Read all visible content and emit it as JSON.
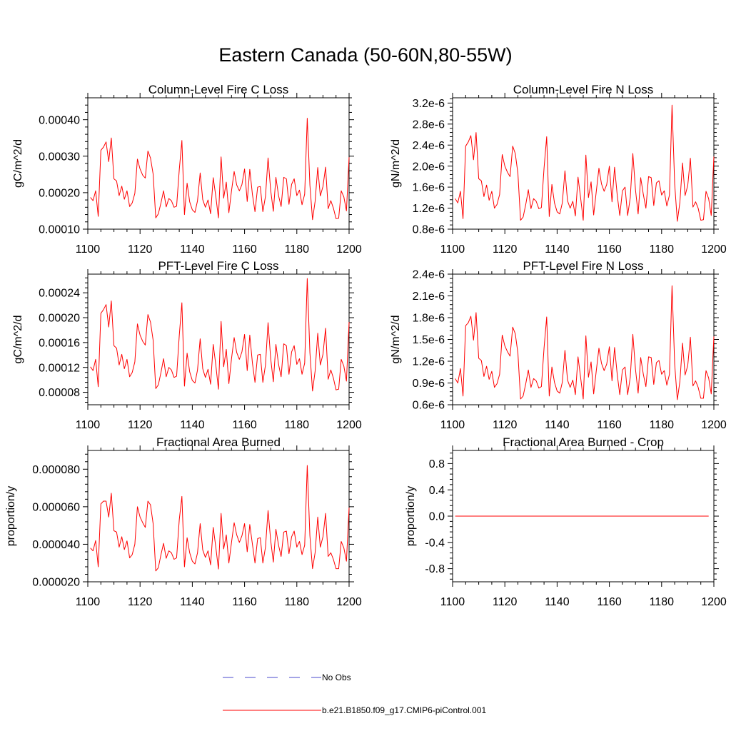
{
  "title": "Eastern Canada (50-60N,80-55W)",
  "colors": {
    "model": "#ff0000",
    "obs": "#4a4acd",
    "axis": "#000000"
  },
  "legend": {
    "entries": [
      {
        "label": "No Obs",
        "style": "dashed",
        "color": "#4a4acd"
      },
      {
        "label": "b.e21.B1850.f09_g17.CMIP6-piControl.001",
        "style": "solid",
        "color": "#ff0000"
      }
    ]
  },
  "chart_data": [
    {
      "type": "line",
      "title": "Column-Level Fire C Loss",
      "xlabel": "",
      "ylabel": "gC/m^2/d",
      "xlim": [
        1100,
        1200
      ],
      "ylim": [
        0.0001,
        0.00046
      ],
      "xticks": [
        1100,
        1120,
        1140,
        1160,
        1180,
        1200
      ],
      "xtick_labels": [
        "1100",
        "1120",
        "1140",
        "1160",
        "1180",
        "1200"
      ],
      "yticks": [
        0.0001,
        0.0002,
        0.0003,
        0.0004
      ],
      "ytick_labels": [
        "0.00010",
        "0.00020",
        "0.00030",
        "0.00040"
      ],
      "series": [
        {
          "name": "b.e21.B1850.f09_g17.CMIP6-piControl.001",
          "x_start": 1101,
          "values": [
            0.000187,
            0.000178,
            0.000205,
            0.000135,
            0.000316,
            0.000325,
            0.000339,
            0.000285,
            0.00035,
            0.000238,
            0.000232,
            0.000192,
            0.000218,
            0.000182,
            0.000205,
            0.000162,
            0.000172,
            0.000198,
            0.000292,
            0.000265,
            0.000248,
            0.00024,
            0.000314,
            0.000295,
            0.000251,
            0.000131,
            0.000142,
            0.000172,
            0.000205,
            0.000161,
            0.000184,
            0.000178,
            0.00016,
            0.000163,
            0.000262,
            0.000343,
            0.00014,
            0.000226,
            0.000175,
            0.000153,
            0.000146,
            0.000178,
            0.000254,
            0.000181,
            0.00016,
            0.00018,
            0.000142,
            0.000241,
            0.00019,
            0.000131,
            0.000298,
            0.000185,
            0.000229,
            0.000145,
            0.000205,
            0.000258,
            0.000221,
            0.000205,
            0.000222,
            0.000265,
            0.000176,
            0.000264,
            0.000195,
            0.000148,
            0.000215,
            0.000217,
            0.000148,
            0.00019,
            0.000295,
            0.000206,
            0.000149,
            0.000242,
            0.000192,
            0.000162,
            0.000242,
            0.000238,
            0.000168,
            0.000223,
            0.000238,
            0.000192,
            0.000207,
            0.000167,
            0.000196,
            0.000404,
            0.000221,
            0.000126,
            0.000176,
            0.000269,
            0.000191,
            0.000217,
            0.00027,
            0.000156,
            0.000178,
            0.000158,
            0.000129,
            0.00013,
            0.000205,
            0.000188,
            0.00015,
            0.000297
          ]
        }
      ]
    },
    {
      "type": "line",
      "title": "Column-Level Fire N Loss",
      "xlabel": "",
      "ylabel": "gN/m^2/d",
      "xlim": [
        1100,
        1200
      ],
      "ylim": [
        8e-07,
        3.3e-06
      ],
      "xticks": [
        1100,
        1120,
        1140,
        1160,
        1180,
        1200
      ],
      "xtick_labels": [
        "1100",
        "1120",
        "1140",
        "1160",
        "1180",
        "1200"
      ],
      "yticks": [
        8e-07,
        1.2e-06,
        1.6e-06,
        2e-06,
        2.4e-06,
        2.8e-06,
        3.2e-06
      ],
      "ytick_labels": [
        "0.8e-6",
        "1.2e-6",
        "1.6e-6",
        "2.0e-6",
        "2.4e-6",
        "2.8e-6",
        "3.2e-6"
      ],
      "series": [
        {
          "name": "b.e21.B1850.f09_g17.CMIP6-piControl.001",
          "x_start": 1101,
          "values": [
            1.38e-06,
            1.3e-06,
            1.52e-06,
            1e-06,
            2.38e-06,
            2.46e-06,
            2.58e-06,
            2.12e-06,
            2.64e-06,
            1.76e-06,
            1.72e-06,
            1.42e-06,
            1.64e-06,
            1.35e-06,
            1.52e-06,
            1.2e-06,
            1.27e-06,
            1.46e-06,
            2.22e-06,
            2e-06,
            1.88e-06,
            1.8e-06,
            2.38e-06,
            2.24e-06,
            1.86e-06,
            9.7e-07,
            1.03e-06,
            1.27e-06,
            1.55e-06,
            1.19e-06,
            1.38e-06,
            1.33e-06,
            1.19e-06,
            1.21e-06,
            1.96e-06,
            2.56e-06,
            1.04e-06,
            1.65e-06,
            1.3e-06,
            1.13e-06,
            1.09e-06,
            1.3e-06,
            1.91e-06,
            1.34e-06,
            1.2e-06,
            1.33e-06,
            1.05e-06,
            1.79e-06,
            1.4e-06,
            9.7e-07,
            2.21e-06,
            1.4e-06,
            1.7e-06,
            1.07e-06,
            1.52e-06,
            1.96e-06,
            1.66e-06,
            1.52e-06,
            1.65e-06,
            2e-06,
            1.32e-06,
            1.98e-06,
            1.45e-06,
            1.06e-06,
            1.53e-06,
            1.6e-06,
            1.06e-06,
            1.4e-06,
            2.24e-06,
            1.55e-06,
            1.09e-06,
            1.78e-06,
            1.46e-06,
            1.2e-06,
            1.8e-06,
            1.78e-06,
            1.25e-06,
            1.68e-06,
            1.72e-06,
            1.45e-06,
            1.53e-06,
            1.24e-06,
            1.45e-06,
            3.16e-06,
            1.66e-06,
            9.5e-07,
            1.31e-06,
            2.06e-06,
            1.44e-06,
            1.63e-06,
            2.15e-06,
            1.22e-06,
            1.32e-06,
            1.2e-06,
            9.7e-07,
            9.8e-07,
            1.52e-06,
            1.38e-06,
            1.06e-06,
            2.18e-06
          ]
        }
      ]
    },
    {
      "type": "line",
      "title": "PFT-Level Fire C Loss",
      "xlabel": "",
      "ylabel": "gC/m^2/d",
      "xlim": [
        1100,
        1200
      ],
      "ylim": [
        6e-05,
        0.00027
      ],
      "xticks": [
        1100,
        1120,
        1140,
        1160,
        1180,
        1200
      ],
      "xtick_labels": [
        "1100",
        "1120",
        "1140",
        "1160",
        "1180",
        "1200"
      ],
      "yticks": [
        8e-05,
        0.00012,
        0.00016,
        0.0002,
        0.00024
      ],
      "ytick_labels": [
        "0.00008",
        "0.00012",
        "0.00016",
        "0.00020",
        "0.00024"
      ],
      "series": [
        {
          "name": "b.e21.B1850.f09_g17.CMIP6-piControl.001",
          "x_start": 1101,
          "values": [
            0.000121,
            0.000115,
            0.000133,
            8.9e-05,
            0.000207,
            0.000213,
            0.000221,
            0.000185,
            0.000227,
            0.000155,
            0.000151,
            0.000124,
            0.000141,
            0.000118,
            0.000133,
            0.000105,
            0.000112,
            0.000129,
            0.00019,
            0.000172,
            0.000162,
            0.000156,
            0.000205,
            0.000193,
            0.000164,
            8.6e-05,
            9.2e-05,
            0.000112,
            0.000134,
            0.000105,
            0.00012,
            0.000116,
            0.000104,
            0.000106,
            0.000171,
            0.000224,
            9e-05,
            0.000143,
            0.000113,
            9.9e-05,
            9.5e-05,
            0.000116,
            0.000166,
            0.000118,
            0.000104,
            0.000117,
            9.3e-05,
            0.000157,
            0.000124,
            8.5e-05,
            0.000194,
            0.000121,
            0.000149,
            9.4e-05,
            0.000134,
            0.000168,
            0.000144,
            0.000133,
            0.000145,
            0.000173,
            0.000115,
            0.000172,
            0.000127,
            9.6e-05,
            0.00014,
            0.000141,
            9.6e-05,
            0.000124,
            0.000192,
            0.000134,
            9.7e-05,
            0.000157,
            0.000125,
            0.000105,
            0.000158,
            0.000155,
            0.000109,
            0.000145,
            0.000155,
            0.000125,
            0.000134,
            0.000109,
            0.000127,
            0.000263,
            0.000144,
            8.2e-05,
            0.000114,
            0.000175,
            0.000124,
            0.000141,
            0.000183,
            0.000101,
            0.000116,
            0.000103,
            8.4e-05,
            8.5e-05,
            0.000133,
            0.000122,
            9.8e-05,
            0.000193
          ]
        }
      ]
    },
    {
      "type": "line",
      "title": "PFT-Level Fire N Loss",
      "xlabel": "",
      "ylabel": "gN/m^2/d",
      "xlim": [
        1100,
        1200
      ],
      "ylim": [
        6e-07,
        2.4e-06
      ],
      "xticks": [
        1100,
        1120,
        1140,
        1160,
        1180,
        1200
      ],
      "xtick_labels": [
        "1100",
        "1120",
        "1140",
        "1160",
        "1180",
        "1200"
      ],
      "yticks": [
        6e-07,
        9e-07,
        1.2e-06,
        1.5e-06,
        1.8e-06,
        2.1e-06,
        2.4e-06
      ],
      "ytick_labels": [
        "0.6e-6",
        "0.9e-6",
        "1.2e-6",
        "1.5e-6",
        "1.8e-6",
        "2.1e-6",
        "2.4e-6"
      ],
      "series": [
        {
          "name": "b.e21.B1850.f09_g17.CMIP6-piControl.001",
          "x_start": 1101,
          "values": [
            9.6e-07,
            9e-07,
            1.1e-06,
            7.2e-07,
            1.69e-06,
            1.73e-06,
            1.82e-06,
            1.49e-06,
            1.87e-06,
            1.24e-06,
            1.21e-06,
            9.9e-07,
            1.13e-06,
            9.5e-07,
            1.06e-06,
            8.4e-07,
            8.9e-07,
            1.02e-06,
            1.56e-06,
            1.41e-06,
            1.33e-06,
            1.27e-06,
            1.67e-06,
            1.58e-06,
            1.31e-06,
            6.8e-07,
            7.2e-07,
            8.9e-07,
            1.08e-06,
            8.4e-07,
            9.6e-07,
            9.3e-07,
            8.3e-07,
            8.5e-07,
            1.38e-06,
            1.81e-06,
            7.2e-07,
            1.12e-06,
            9.1e-07,
            7.9e-07,
            7.6e-07,
            9.1e-07,
            1.35e-06,
            9.4e-07,
            8.4e-07,
            9.4e-07,
            7.4e-07,
            1.26e-06,
            9.8e-07,
            6.8e-07,
            1.55e-06,
            9.8e-07,
            1.19e-06,
            7.5e-07,
            1.07e-06,
            1.38e-06,
            1.17e-06,
            1.07e-06,
            1.16e-06,
            1.4e-06,
            9.3e-07,
            1.39e-06,
            1.02e-06,
            7.4e-07,
            1.08e-06,
            1.12e-06,
            7.4e-07,
            9.8e-07,
            1.57e-06,
            1.09e-06,
            7.6e-07,
            1.25e-06,
            1.02e-06,
            8.5e-07,
            1.26e-06,
            1.25e-06,
            8.8e-07,
            1.18e-06,
            1.21e-06,
            1.02e-06,
            1.07e-06,
            8.7e-07,
            1.02e-06,
            2.24e-06,
            1.16e-06,
            6.7e-07,
            9.2e-07,
            1.45e-06,
            1.01e-06,
            1.14e-06,
            1.53e-06,
            8.6e-07,
            9.3e-07,
            8.4e-07,
            6.9e-07,
            6.9e-07,
            1.07e-06,
            9.7e-07,
            7.5e-07,
            1.54e-06
          ]
        }
      ]
    },
    {
      "type": "line",
      "title": "Fractional Area Burned",
      "xlabel": "",
      "ylabel": "proportion/y",
      "xlim": [
        1100,
        1200
      ],
      "ylim": [
        2e-05,
        9e-05
      ],
      "xticks": [
        1100,
        1120,
        1140,
        1160,
        1180,
        1200
      ],
      "xtick_labels": [
        "1100",
        "1120",
        "1140",
        "1160",
        "1180",
        "1200"
      ],
      "yticks": [
        2e-05,
        4e-05,
        6e-05,
        8e-05
      ],
      "ytick_labels": [
        "0.000020",
        "0.000040",
        "0.000060",
        "0.000080"
      ],
      "series": [
        {
          "name": "b.e21.B1850.f09_g17.CMIP6-piControl.001",
          "x_start": 1101,
          "values": [
            3.8e-05,
            3.65e-05,
            4.2e-05,
            2.8e-05,
            6.15e-05,
            6.3e-05,
            6.3e-05,
            5.45e-05,
            6.72e-05,
            4.72e-05,
            4.65e-05,
            3.85e-05,
            4.4e-05,
            3.72e-05,
            4.18e-05,
            3.28e-05,
            3.45e-05,
            4e-05,
            6e-05,
            5.45e-05,
            5.15e-05,
            4.9e-05,
            6.3e-05,
            6.1e-05,
            5.1e-05,
            2.58e-05,
            2.75e-05,
            3.45e-05,
            4.05e-05,
            3.25e-05,
            3.65e-05,
            3.55e-05,
            3.2e-05,
            3.28e-05,
            5.3e-05,
            6.55e-05,
            2.8e-05,
            4.35e-05,
            3.55e-05,
            3.1e-05,
            2.95e-05,
            3.55e-05,
            5.1e-05,
            3.7e-05,
            3.3e-05,
            3.65e-05,
            2.9e-05,
            4.9e-05,
            3.85e-05,
            2.68e-05,
            5.65e-05,
            3.75e-05,
            4.5e-05,
            3e-05,
            4.1e-05,
            5.15e-05,
            4.5e-05,
            4.1e-05,
            4.45e-05,
            5.1e-05,
            3.6e-05,
            5.05e-05,
            4e-05,
            3e-05,
            4.3e-05,
            4.35e-05,
            3e-05,
            3.85e-05,
            5.8e-05,
            4.2e-05,
            3.05e-05,
            4.8e-05,
            3.95e-05,
            3.35e-05,
            4.65e-05,
            4.7e-05,
            3.5e-05,
            4.4e-05,
            4.7e-05,
            3.85e-05,
            4.15e-05,
            3.45e-05,
            3.95e-05,
            8.2e-05,
            4.45e-05,
            2.7e-05,
            3.55e-05,
            5.45e-05,
            3.85e-05,
            4.4e-05,
            5.65e-05,
            3.35e-05,
            3.55e-05,
            3.2e-05,
            2.7e-05,
            2.7e-05,
            4.15e-05,
            3.8e-05,
            3.1e-05,
            5.95e-05
          ]
        }
      ]
    },
    {
      "type": "line",
      "title": "Fractional Area Burned - Crop",
      "xlabel": "",
      "ylabel": "proportion/y",
      "xlim": [
        1100,
        1200
      ],
      "ylim": [
        -1.0,
        1.0
      ],
      "xticks": [
        1100,
        1120,
        1140,
        1160,
        1180,
        1200
      ],
      "xtick_labels": [
        "1100",
        "1120",
        "1140",
        "1160",
        "1180",
        "1200"
      ],
      "yticks": [
        -0.8,
        -0.4,
        0.0,
        0.4,
        0.8
      ],
      "ytick_labels": [
        "-0.8",
        "-0.4",
        "0.0",
        "0.4",
        "0.8"
      ],
      "series": [
        {
          "name": "b.e21.B1850.f09_g17.CMIP6-piControl.001",
          "x": [
            1101,
            1198
          ],
          "values": [
            0.0,
            0.0
          ]
        }
      ]
    }
  ]
}
